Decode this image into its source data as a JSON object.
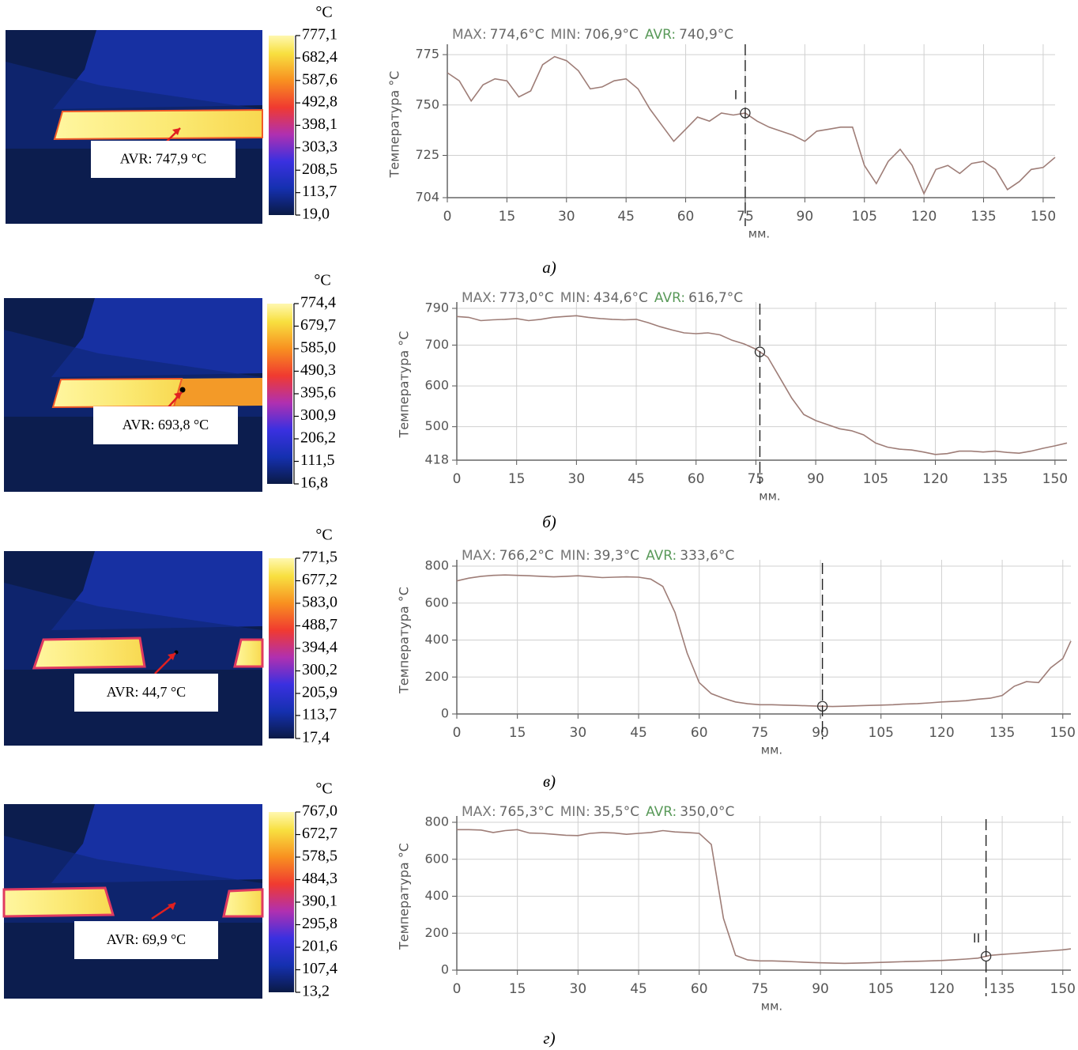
{
  "thermal_images": [
    {
      "unit": "°C",
      "clim": [
        19.0,
        777.1
      ],
      "avr_label": "AVR: 747,9 °C",
      "ticks": [
        {
          "value": 777.1,
          "label": "777,1"
        },
        {
          "value": 682.4,
          "label": "682,4"
        },
        {
          "value": 587.6,
          "label": "587,6"
        },
        {
          "value": 492.8,
          "label": "492,8"
        },
        {
          "value": 398.1,
          "label": "398,1"
        },
        {
          "value": 303.3,
          "label": "303,3"
        },
        {
          "value": 208.5,
          "label": "208,5"
        },
        {
          "value": 113.7,
          "label": "113,7"
        },
        {
          "value": 19.0,
          "label": "19,0"
        }
      ]
    },
    {
      "unit": "°C",
      "clim": [
        16.8,
        774.4
      ],
      "avr_label": "AVR: 693,8 °C",
      "ticks": [
        {
          "value": 774.4,
          "label": "774,4"
        },
        {
          "value": 679.7,
          "label": "679,7"
        },
        {
          "value": 585.0,
          "label": "585,0"
        },
        {
          "value": 490.3,
          "label": "490,3"
        },
        {
          "value": 395.6,
          "label": "395,6"
        },
        {
          "value": 300.9,
          "label": "300,9"
        },
        {
          "value": 206.2,
          "label": "206,2"
        },
        {
          "value": 111.5,
          "label": "111,5"
        },
        {
          "value": 16.8,
          "label": "16,8"
        }
      ]
    },
    {
      "unit": "°C",
      "clim": [
        17.4,
        771.5
      ],
      "avr_label": "AVR: 44,7 °C",
      "ticks": [
        {
          "value": 771.5,
          "label": "771,5"
        },
        {
          "value": 677.2,
          "label": "677,2"
        },
        {
          "value": 583.0,
          "label": "583,0"
        },
        {
          "value": 488.7,
          "label": "488,7"
        },
        {
          "value": 394.4,
          "label": "394,4"
        },
        {
          "value": 300.2,
          "label": "300,2"
        },
        {
          "value": 205.9,
          "label": "205,9"
        },
        {
          "value": 113.7,
          "label": "113,7"
        },
        {
          "value": 17.4,
          "label": "17,4"
        }
      ]
    },
    {
      "unit": "°C",
      "clim": [
        13.2,
        767.0
      ],
      "avr_label": "AVR: 69,9 °C",
      "ticks": [
        {
          "value": 767.0,
          "label": "767,0"
        },
        {
          "value": 672.7,
          "label": "672,7"
        },
        {
          "value": 578.5,
          "label": "578,5"
        },
        {
          "value": 484.3,
          "label": "484,3"
        },
        {
          "value": 390.1,
          "label": "390,1"
        },
        {
          "value": 295.8,
          "label": "295,8"
        },
        {
          "value": 201.6,
          "label": "201,6"
        },
        {
          "value": 107.4,
          "label": "107,4"
        },
        {
          "value": 13.2,
          "label": "13,2"
        }
      ]
    }
  ],
  "chart_data": [
    {
      "type": "line",
      "caption": "а)",
      "y_label": "Температура °C",
      "x_label": "мм.",
      "color": "#9e7d77",
      "grid": true,
      "stats": [
        {
          "label": "MAX:",
          "value": "774,6°C"
        },
        {
          "label": "MIN:",
          "value": "706,9°C"
        },
        {
          "label": "AVR:",
          "value": "740,9°C"
        }
      ],
      "cursor_x": 75,
      "cursor_label": "I",
      "xlim": [
        0,
        153
      ],
      "xticks": [
        0,
        15,
        30,
        45,
        60,
        75,
        90,
        105,
        120,
        135,
        150
      ],
      "ylim": [
        704,
        777
      ],
      "yticks": [
        704,
        725,
        750,
        775
      ],
      "x": [
        0,
        3,
        6,
        9,
        12,
        15,
        18,
        21,
        24,
        27,
        30,
        33,
        36,
        39,
        42,
        45,
        48,
        51,
        54,
        57,
        60,
        63,
        66,
        69,
        72,
        75,
        78,
        81,
        84,
        87,
        90,
        93,
        96,
        99,
        102,
        105,
        108,
        111,
        114,
        117,
        120,
        123,
        126,
        129,
        132,
        135,
        138,
        141,
        144,
        147,
        150,
        153
      ],
      "values": [
        766,
        762,
        752,
        760,
        763,
        762,
        754,
        757,
        770,
        774,
        772,
        767,
        758,
        759,
        762,
        763,
        758,
        748,
        740,
        732,
        738,
        744,
        742,
        746,
        745,
        746,
        742,
        739,
        737,
        735,
        732,
        737,
        738,
        739,
        739,
        720,
        711,
        722,
        728,
        720,
        706,
        718,
        720,
        716,
        721,
        722,
        718,
        708,
        712,
        718,
        719,
        724
      ]
    },
    {
      "type": "line",
      "caption": "б)",
      "y_label": "Температура °C",
      "x_label": "мм.",
      "color": "#9e7d77",
      "grid": true,
      "stats": [
        {
          "label": "MAX:",
          "value": "773,0°C"
        },
        {
          "label": "MIN:",
          "value": "434,6°C"
        },
        {
          "label": "AVR:",
          "value": "616,7°C"
        }
      ],
      "cursor_x": 76,
      "xlim": [
        0,
        153
      ],
      "xticks": [
        0,
        15,
        30,
        45,
        60,
        75,
        90,
        105,
        120,
        135,
        150
      ],
      "ylim": [
        418,
        790
      ],
      "yticks": [
        418,
        500,
        600,
        700,
        790
      ],
      "x": [
        0,
        3,
        6,
        9,
        12,
        15,
        18,
        21,
        24,
        27,
        30,
        33,
        36,
        39,
        42,
        45,
        48,
        51,
        54,
        57,
        60,
        63,
        66,
        69,
        72,
        75,
        78,
        81,
        84,
        87,
        90,
        93,
        96,
        99,
        102,
        105,
        108,
        111,
        114,
        117,
        120,
        123,
        126,
        129,
        132,
        135,
        138,
        141,
        144,
        147,
        150,
        153
      ],
      "values": [
        770,
        768,
        760,
        762,
        763,
        765,
        760,
        763,
        768,
        770,
        772,
        768,
        765,
        763,
        762,
        763,
        755,
        745,
        737,
        730,
        728,
        730,
        725,
        712,
        703,
        690,
        670,
        620,
        570,
        530,
        515,
        505,
        495,
        490,
        480,
        460,
        450,
        445,
        443,
        438,
        432,
        434,
        440,
        440,
        438,
        440,
        437,
        435,
        440,
        447,
        453,
        460
      ]
    },
    {
      "type": "line",
      "caption": "в)",
      "y_label": "Температура °C",
      "x_label": "мм.",
      "color": "#9e7d77",
      "grid": true,
      "stats": [
        {
          "label": "MAX:",
          "value": "766,2°C"
        },
        {
          "label": "MIN:",
          "value": "39,3°C"
        },
        {
          "label": "AVR:",
          "value": "333,6°C"
        }
      ],
      "cursor_x": 90.5,
      "xlim": [
        0,
        152
      ],
      "xticks": [
        0,
        15,
        30,
        45,
        60,
        75,
        90,
        105,
        120,
        135,
        150
      ],
      "ylim": [
        0,
        800
      ],
      "yticks": [
        0,
        200,
        400,
        600,
        800
      ],
      "x": [
        0,
        3,
        6,
        9,
        12,
        15,
        18,
        21,
        24,
        27,
        30,
        33,
        36,
        39,
        42,
        45,
        48,
        51,
        54,
        57,
        60,
        63,
        66,
        69,
        72,
        75,
        78,
        81,
        84,
        87,
        90,
        93,
        96,
        99,
        102,
        105,
        108,
        111,
        114,
        117,
        120,
        123,
        126,
        129,
        132,
        135,
        138,
        141,
        144,
        147,
        150,
        152
      ],
      "values": [
        720,
        735,
        745,
        750,
        752,
        750,
        748,
        745,
        742,
        745,
        748,
        743,
        738,
        740,
        742,
        740,
        730,
        690,
        550,
        330,
        170,
        110,
        85,
        65,
        55,
        50,
        50,
        48,
        46,
        44,
        42,
        40,
        42,
        44,
        46,
        48,
        50,
        54,
        56,
        60,
        65,
        68,
        72,
        80,
        85,
        100,
        150,
        175,
        170,
        250,
        300,
        395
      ]
    },
    {
      "type": "line",
      "caption": "г)",
      "y_label": "Температура °C",
      "x_label": "мм.",
      "color": "#9e7d77",
      "grid": true,
      "stats": [
        {
          "label": "MAX:",
          "value": "765,3°C"
        },
        {
          "label": "MIN:",
          "value": "35,5°C"
        },
        {
          "label": "AVR:",
          "value": "350,0°C"
        }
      ],
      "cursor_x": 131,
      "cursor_label": "II",
      "xlim": [
        0,
        152
      ],
      "xticks": [
        0,
        15,
        30,
        45,
        60,
        75,
        90,
        105,
        120,
        135,
        150
      ],
      "ylim": [
        0,
        800
      ],
      "yticks": [
        0,
        200,
        400,
        600,
        800
      ],
      "x": [
        0,
        3,
        6,
        9,
        12,
        15,
        18,
        21,
        24,
        27,
        30,
        33,
        36,
        39,
        42,
        45,
        48,
        51,
        54,
        57,
        60,
        63,
        66,
        69,
        72,
        75,
        78,
        81,
        84,
        87,
        90,
        93,
        96,
        99,
        102,
        105,
        108,
        111,
        114,
        117,
        120,
        123,
        126,
        129,
        132,
        135,
        138,
        141,
        144,
        147,
        150,
        152
      ],
      "values": [
        760,
        760,
        758,
        745,
        755,
        760,
        742,
        740,
        735,
        730,
        728,
        740,
        745,
        742,
        735,
        740,
        745,
        755,
        748,
        745,
        740,
        680,
        280,
        80,
        55,
        50,
        50,
        48,
        45,
        42,
        40,
        38,
        37,
        38,
        40,
        42,
        44,
        46,
        48,
        50,
        52,
        56,
        60,
        65,
        80,
        85,
        90,
        95,
        100,
        105,
        110,
        115
      ]
    }
  ]
}
